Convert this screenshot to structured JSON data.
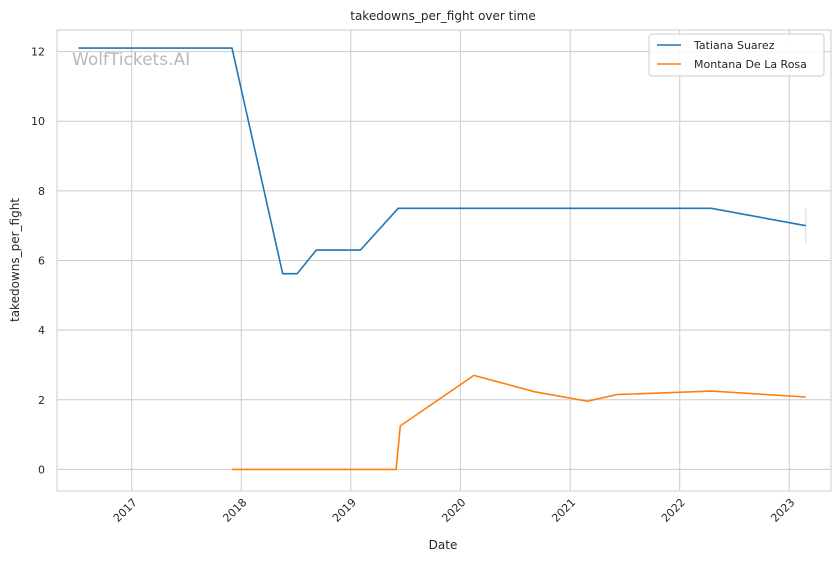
{
  "chart_data": {
    "type": "line",
    "title": "takedowns_per_fight over time",
    "xlabel": "Date",
    "ylabel": "takedowns_per_fight",
    "watermark": "WolfTickets.AI",
    "x_range": [
      "2016-04-27",
      "2023-05-20"
    ],
    "x_ticks": [
      "2017",
      "2018",
      "2019",
      "2020",
      "2021",
      "2022",
      "2023"
    ],
    "ylim": [
      -0.62,
      12.62
    ],
    "y_ticks": [
      0,
      2,
      4,
      6,
      8,
      10,
      12
    ],
    "grid": true,
    "legend_position": "top-right",
    "series": [
      {
        "name": "Tatiana Suarez",
        "color": "#1f77b4",
        "points": [
          {
            "x": "2016-07-08",
            "y": 12.1
          },
          {
            "x": "2017-12-01",
            "y": 12.1
          },
          {
            "x": "2018-05-19",
            "y": 5.62
          },
          {
            "x": "2018-07-06",
            "y": 5.62
          },
          {
            "x": "2018-09-08",
            "y": 6.3
          },
          {
            "x": "2019-02-02",
            "y": 6.3
          },
          {
            "x": "2019-06-08",
            "y": 7.5
          },
          {
            "x": "2022-04-16",
            "y": 7.5
          },
          {
            "x": "2023-02-25",
            "y": 7.0
          }
        ],
        "error_bar": {
          "x": "2023-02-25",
          "low": 6.5,
          "high": 7.5
        }
      },
      {
        "name": "Montana De La Rosa",
        "color": "#ff7f0e",
        "points": [
          {
            "x": "2017-12-01",
            "y": 0
          },
          {
            "x": "2019-06-01",
            "y": 0
          },
          {
            "x": "2019-06-15",
            "y": 1.25
          },
          {
            "x": "2020-02-15",
            "y": 2.7
          },
          {
            "x": "2020-09-05",
            "y": 2.23
          },
          {
            "x": "2021-02-27",
            "y": 1.96
          },
          {
            "x": "2021-06-05",
            "y": 2.15
          },
          {
            "x": "2022-04-16",
            "y": 2.25
          },
          {
            "x": "2023-02-25",
            "y": 2.08
          }
        ]
      }
    ]
  }
}
